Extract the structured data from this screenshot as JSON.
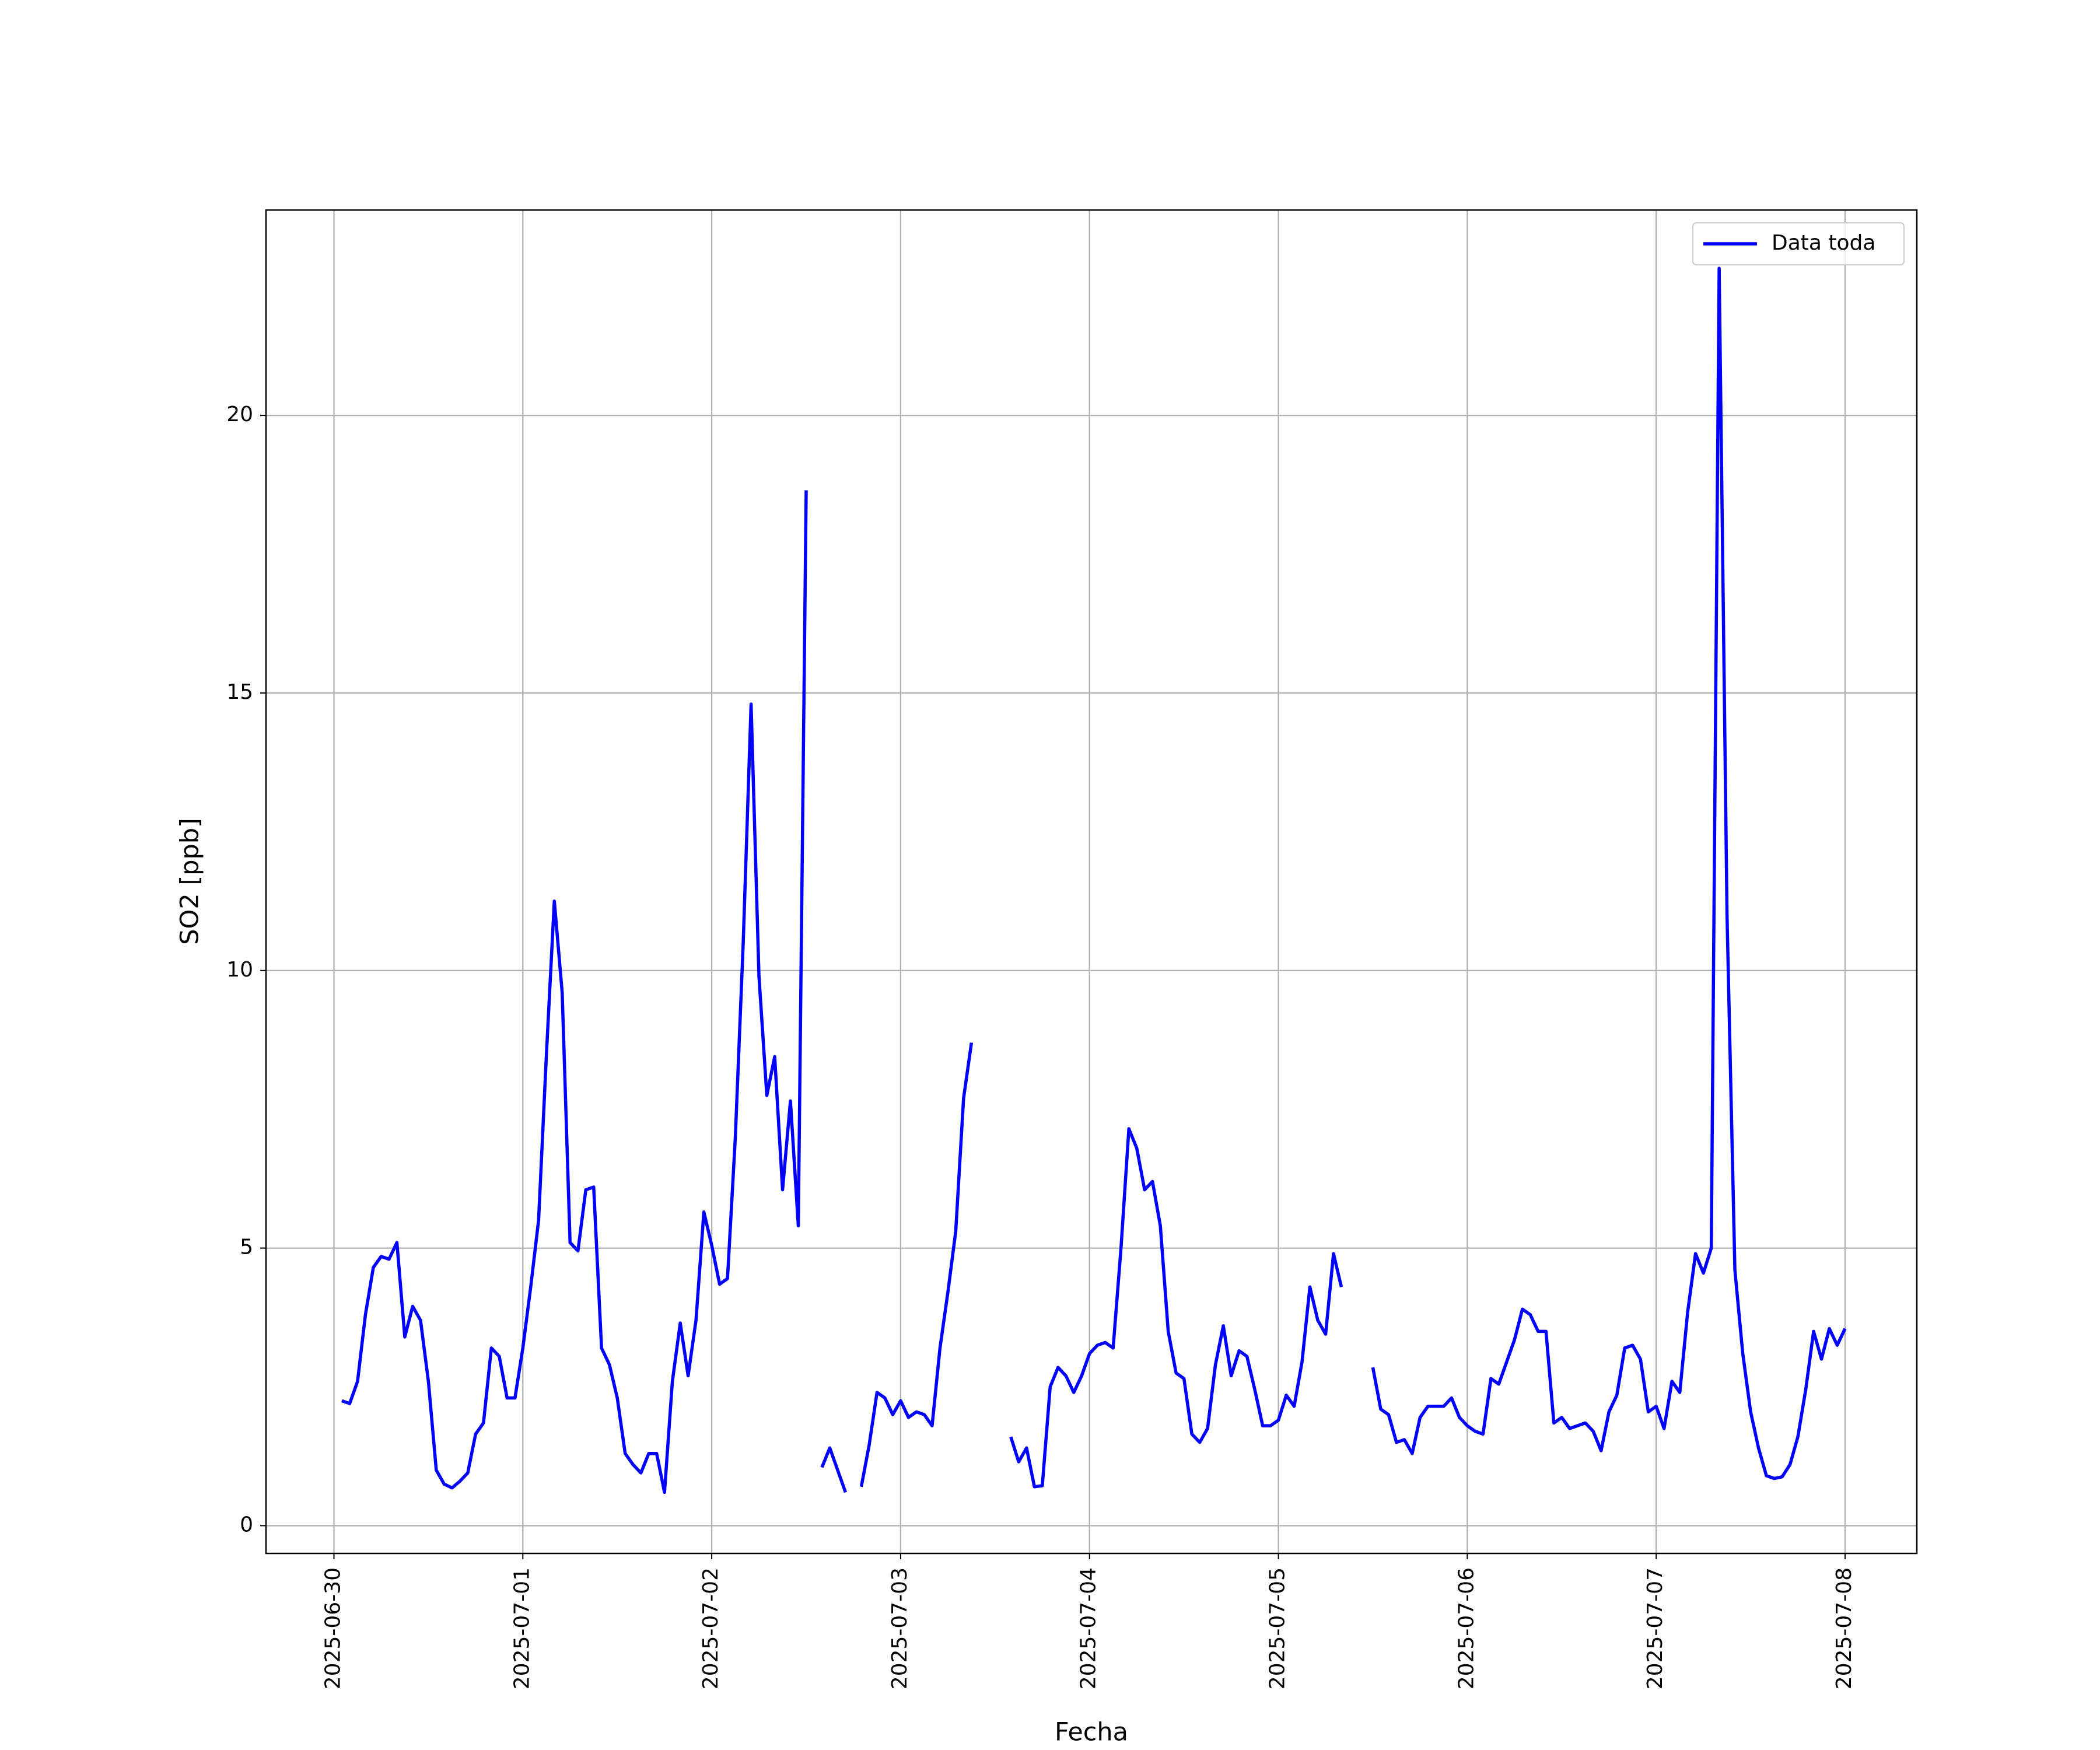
{
  "chart_data": {
    "type": "line",
    "xlabel": "Fecha",
    "ylabel": "SO2 [ppb]",
    "x": [
      "2025-06-30T01:00",
      "2025-06-30T02:00",
      "2025-06-30T03:00",
      "2025-06-30T04:00",
      "2025-06-30T05:00",
      "2025-06-30T06:00",
      "2025-06-30T07:00",
      "2025-06-30T08:00",
      "2025-06-30T09:00",
      "2025-06-30T10:00",
      "2025-06-30T11:00",
      "2025-06-30T12:00",
      "2025-06-30T13:00",
      "2025-06-30T14:00",
      "2025-06-30T15:00",
      "2025-06-30T16:00",
      "2025-06-30T17:00",
      "2025-06-30T18:00",
      "2025-06-30T19:00",
      "2025-06-30T20:00",
      "2025-06-30T21:00",
      "2025-06-30T22:00",
      "2025-06-30T23:00",
      "2025-07-01T00:00",
      "2025-07-01T01:00",
      "2025-07-01T02:00",
      "2025-07-01T03:00",
      "2025-07-01T04:00",
      "2025-07-01T05:00",
      "2025-07-01T06:00",
      "2025-07-01T07:00",
      "2025-07-01T08:00",
      "2025-07-01T09:00",
      "2025-07-01T10:00",
      "2025-07-01T11:00",
      "2025-07-01T12:00",
      "2025-07-01T13:00",
      "2025-07-01T14:00",
      "2025-07-01T15:00",
      "2025-07-01T16:00",
      "2025-07-01T17:00",
      "2025-07-01T18:00",
      "2025-07-01T19:00",
      "2025-07-01T20:00",
      "2025-07-01T21:00",
      "2025-07-01T22:00",
      "2025-07-01T23:00",
      "2025-07-02T00:00",
      "2025-07-02T01:00",
      "2025-07-02T02:00",
      "2025-07-02T03:00",
      "2025-07-02T04:00",
      "2025-07-02T05:00",
      "2025-07-02T06:00",
      "2025-07-02T07:00",
      "2025-07-02T08:00",
      "2025-07-02T09:00",
      "2025-07-02T10:00",
      "2025-07-02T11:00",
      "2025-07-02T12:00",
      "2025-07-02T13:00",
      "2025-07-02T14:00",
      "2025-07-02T15:00",
      "2025-07-02T16:00",
      "2025-07-02T17:00",
      "2025-07-02T18:00",
      "2025-07-02T19:00",
      "2025-07-02T20:00",
      "2025-07-02T21:00",
      "2025-07-02T22:00",
      "2025-07-02T23:00",
      "2025-07-03T00:00",
      "2025-07-03T01:00",
      "2025-07-03T02:00",
      "2025-07-03T03:00",
      "2025-07-03T04:00",
      "2025-07-03T05:00",
      "2025-07-03T06:00",
      "2025-07-03T07:00",
      "2025-07-03T08:00",
      "2025-07-03T09:00",
      "2025-07-03T10:00",
      "2025-07-03T11:00",
      "2025-07-03T12:00",
      "2025-07-03T13:00",
      "2025-07-03T14:00",
      "2025-07-03T15:00",
      "2025-07-03T16:00",
      "2025-07-03T17:00",
      "2025-07-03T18:00",
      "2025-07-03T19:00",
      "2025-07-03T20:00",
      "2025-07-03T21:00",
      "2025-07-03T22:00",
      "2025-07-03T23:00",
      "2025-07-04T00:00",
      "2025-07-04T01:00",
      "2025-07-04T02:00",
      "2025-07-04T03:00",
      "2025-07-04T04:00",
      "2025-07-04T05:00",
      "2025-07-04T06:00",
      "2025-07-04T07:00",
      "2025-07-04T08:00",
      "2025-07-04T09:00",
      "2025-07-04T10:00",
      "2025-07-04T11:00",
      "2025-07-04T12:00",
      "2025-07-04T13:00",
      "2025-07-04T14:00",
      "2025-07-04T15:00",
      "2025-07-04T16:00",
      "2025-07-04T17:00",
      "2025-07-04T18:00",
      "2025-07-04T19:00",
      "2025-07-04T20:00",
      "2025-07-04T21:00",
      "2025-07-04T22:00",
      "2025-07-04T23:00",
      "2025-07-05T00:00",
      "2025-07-05T01:00",
      "2025-07-05T02:00",
      "2025-07-05T03:00",
      "2025-07-05T04:00",
      "2025-07-05T05:00",
      "2025-07-05T06:00",
      "2025-07-05T07:00",
      "2025-07-05T08:00",
      "2025-07-05T09:00",
      "2025-07-05T10:00",
      "2025-07-05T11:00",
      "2025-07-05T12:00",
      "2025-07-05T13:00",
      "2025-07-05T14:00",
      "2025-07-05T15:00",
      "2025-07-05T16:00",
      "2025-07-05T17:00",
      "2025-07-05T18:00",
      "2025-07-05T19:00",
      "2025-07-05T20:00",
      "2025-07-05T21:00",
      "2025-07-05T22:00",
      "2025-07-05T23:00",
      "2025-07-06T00:00",
      "2025-07-06T01:00",
      "2025-07-06T02:00",
      "2025-07-06T03:00",
      "2025-07-06T04:00",
      "2025-07-06T05:00",
      "2025-07-06T06:00",
      "2025-07-06T07:00",
      "2025-07-06T08:00",
      "2025-07-06T09:00",
      "2025-07-06T10:00",
      "2025-07-06T11:00",
      "2025-07-06T12:00",
      "2025-07-06T13:00",
      "2025-07-06T14:00",
      "2025-07-06T15:00",
      "2025-07-06T16:00",
      "2025-07-06T17:00",
      "2025-07-06T18:00",
      "2025-07-06T19:00",
      "2025-07-06T20:00",
      "2025-07-06T21:00",
      "2025-07-06T22:00",
      "2025-07-06T23:00",
      "2025-07-07T00:00",
      "2025-07-07T01:00",
      "2025-07-07T02:00",
      "2025-07-07T03:00",
      "2025-07-07T04:00",
      "2025-07-07T05:00",
      "2025-07-07T06:00",
      "2025-07-07T07:00",
      "2025-07-07T08:00",
      "2025-07-07T09:00",
      "2025-07-07T10:00",
      "2025-07-07T11:00",
      "2025-07-07T12:00",
      "2025-07-07T13:00",
      "2025-07-07T14:00",
      "2025-07-07T15:00",
      "2025-07-07T16:00",
      "2025-07-07T17:00",
      "2025-07-07T18:00",
      "2025-07-07T19:00",
      "2025-07-07T20:00",
      "2025-07-07T21:00",
      "2025-07-07T22:00",
      "2025-07-07T23:00",
      "2025-07-08T00:00"
    ],
    "series": [
      {
        "name": "Data toda",
        "color": "#0000ff",
        "values": [
          2.25,
          2.2,
          2.6,
          3.8,
          4.65,
          4.85,
          4.8,
          5.1,
          3.4,
          3.95,
          3.7,
          2.6,
          1.0,
          0.75,
          0.68,
          0.8,
          0.95,
          1.65,
          1.85,
          3.2,
          3.05,
          2.3,
          2.3,
          3.2,
          4.3,
          5.5,
          8.5,
          11.25,
          9.6,
          5.1,
          4.95,
          6.05,
          6.1,
          3.2,
          2.9,
          2.3,
          1.3,
          1.1,
          0.95,
          1.3,
          1.3,
          0.6,
          2.6,
          3.65,
          2.7,
          3.7,
          5.65,
          5.05,
          4.35,
          4.45,
          7.0,
          10.5,
          14.8,
          9.9,
          7.75,
          8.45,
          6.05,
          7.65,
          5.4,
          18.65,
          null,
          1.05,
          1.4,
          1.0,
          0.6,
          null,
          0.7,
          1.45,
          2.4,
          2.3,
          2.0,
          2.25,
          1.95,
          2.05,
          2.0,
          1.8,
          3.2,
          4.2,
          5.3,
          7.7,
          8.7,
          null,
          null,
          null,
          null,
          1.6,
          1.15,
          1.4,
          0.7,
          0.72,
          2.5,
          2.85,
          2.7,
          2.4,
          2.7,
          3.1,
          3.25,
          3.3,
          3.2,
          5.0,
          7.15,
          6.8,
          6.05,
          6.2,
          5.4,
          3.5,
          2.75,
          2.65,
          1.65,
          1.5,
          1.75,
          2.9,
          3.6,
          2.7,
          3.15,
          3.05,
          2.45,
          1.8,
          1.8,
          1.9,
          2.35,
          2.15,
          2.95,
          4.3,
          3.7,
          3.45,
          4.9,
          4.3,
          null,
          null,
          null,
          2.85,
          2.1,
          2.0,
          1.5,
          1.55,
          1.3,
          1.95,
          2.15,
          2.15,
          2.15,
          2.3,
          1.95,
          1.8,
          1.7,
          1.65,
          2.65,
          2.55,
          2.95,
          3.35,
          3.9,
          3.8,
          3.5,
          3.5,
          1.85,
          1.95,
          1.75,
          1.8,
          1.85,
          1.7,
          1.35,
          2.05,
          2.35,
          3.2,
          3.25,
          3.0,
          2.05,
          2.15,
          1.75,
          2.6,
          2.4,
          3.85,
          4.9,
          4.55,
          5.0,
          22.65,
          11.0,
          4.6,
          3.1,
          2.05,
          1.4,
          0.9,
          0.85,
          0.88,
          1.1,
          1.6,
          2.45,
          3.5,
          3.0,
          3.55,
          3.25,
          3.55
        ]
      }
    ],
    "xlim": [
      "2025-06-29T15:22",
      "2025-07-08T09:07"
    ],
    "xticks": [
      "2025-06-30",
      "2025-07-01",
      "2025-07-02",
      "2025-07-03",
      "2025-07-04",
      "2025-07-05",
      "2025-07-06",
      "2025-07-07",
      "2025-07-08"
    ],
    "ylim": [
      -0.5,
      23.7
    ],
    "yticks": [
      0,
      5,
      10,
      15,
      20
    ],
    "grid": true,
    "legend": "upper right"
  }
}
